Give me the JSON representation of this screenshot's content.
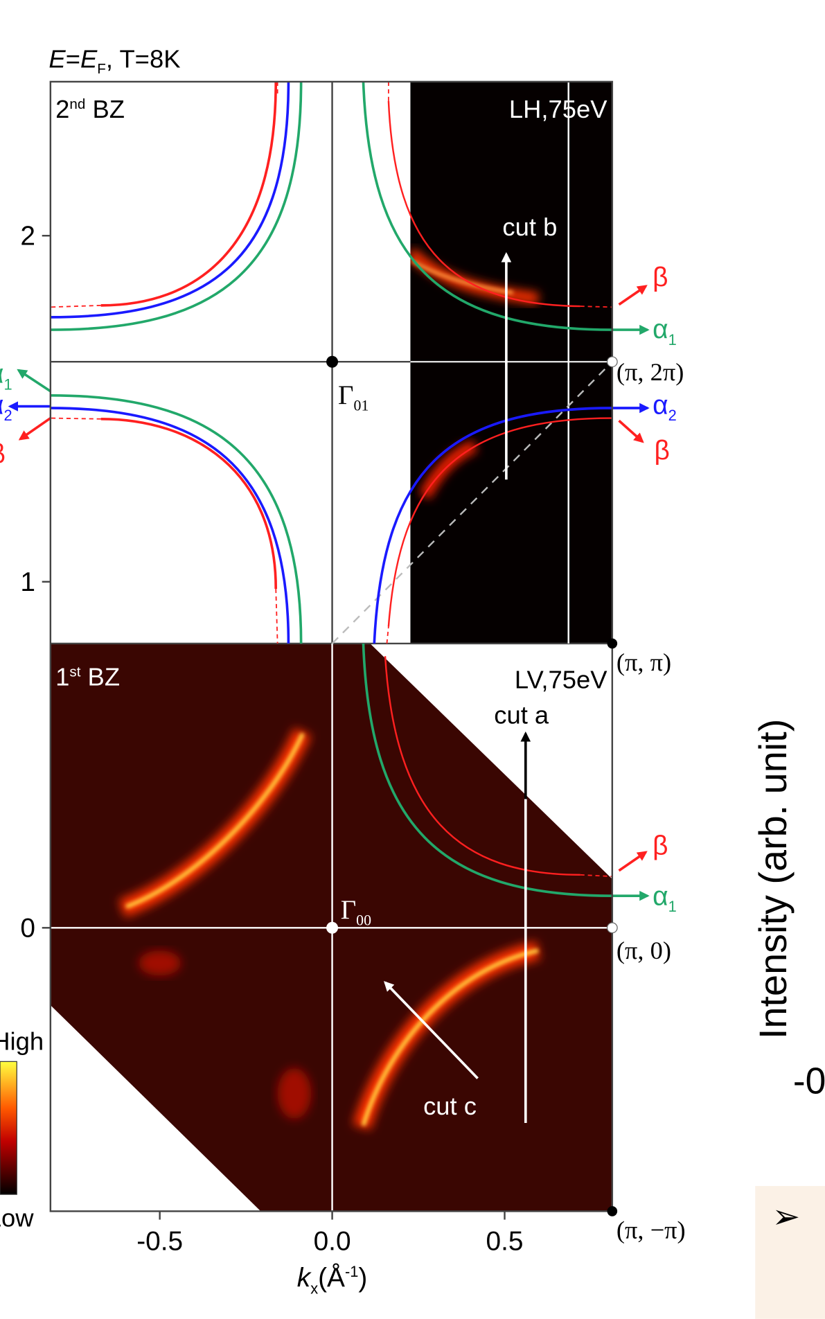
{
  "chart_data": {
    "type": "image",
    "title": [
      "E",
      "=",
      "E",
      "F",
      ", T=8K"
    ],
    "xlabel": [
      "k",
      "x",
      "(Å",
      "-1",
      ")"
    ],
    "xlim": [
      -0.817,
      0.812
    ],
    "ylim": [
      -0.819,
      2.445
    ],
    "xticks": [
      -0.5,
      {
        "value": 0,
        "label": "0.0"
      },
      0.5
    ],
    "yticks": [
      0,
      1,
      2
    ],
    "panels": [
      {
        "label": [
          "2",
          "nd",
          " BZ"
        ],
        "mode": "LH,75eV"
      },
      {
        "label": [
          "1",
          "st",
          " BZ"
        ],
        "mode": "LV,75eV"
      }
    ],
    "cuts": [
      "cut a",
      "cut b",
      "cut c"
    ],
    "points": [
      [
        "Γ",
        "01"
      ],
      [
        "Γ",
        "00"
      ]
    ],
    "corners": [
      "(π, 2π)",
      "(π, π)",
      "(π, 0)",
      "(π, −π)"
    ],
    "bands": {
      "beta": "β",
      "alpha": "α",
      "sub1": "1",
      "sub2": "2"
    },
    "colorbar": [
      "High",
      "Low"
    ],
    "side_label": "Intensity (arb. unit)",
    "side_tick": "-0",
    "bullet": "➢"
  }
}
